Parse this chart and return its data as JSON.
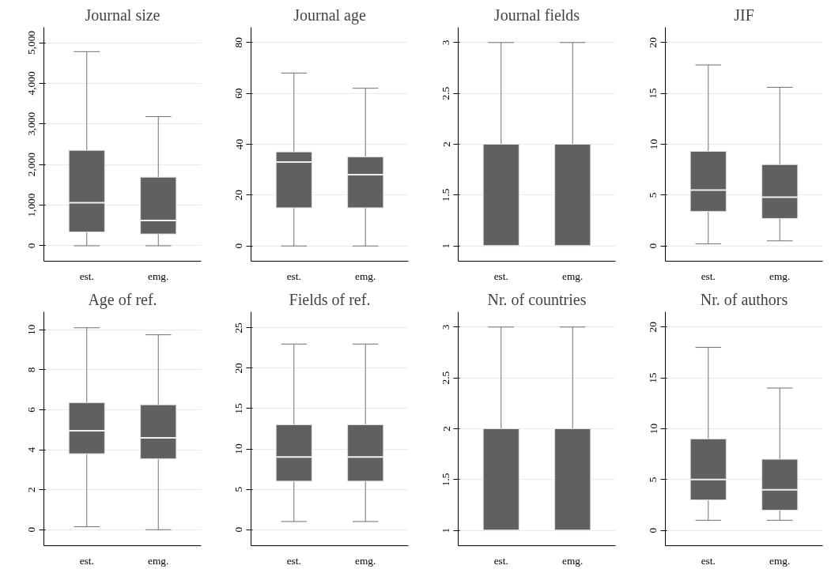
{
  "chart_data": [
    {
      "type": "box",
      "title": "Journal size",
      "categories": [
        "est.",
        "emg."
      ],
      "ylim": [
        -380,
        5380
      ],
      "yticks": [
        0,
        {
          "value": 1000,
          "label": "1,000"
        },
        {
          "value": 2000,
          "label": "2,000"
        },
        {
          "value": 3000,
          "label": "3,000"
        },
        {
          "value": 4000,
          "label": "4,000"
        },
        {
          "value": 5000,
          "label": "5,000"
        }
      ],
      "grid": "y",
      "series": [
        {
          "color": "#606060",
          "boxes": [
            {
              "low": 0,
              "q1": 340,
              "median": 1060,
              "q3": 2350,
              "high": 4780
            },
            {
              "low": 0,
              "q1": 290,
              "median": 620,
              "q3": 1690,
              "high": 3180
            }
          ]
        }
      ]
    },
    {
      "type": "box",
      "title": "Journal age",
      "categories": [
        "est.",
        "emg."
      ],
      "ylim": [
        -6,
        86
      ],
      "yticks": [
        0,
        20,
        40,
        60,
        80
      ],
      "grid": "y",
      "series": [
        {
          "color": "#606060",
          "boxes": [
            {
              "low": 0,
              "q1": 15,
              "median": 33,
              "q3": 37,
              "high": 68
            },
            {
              "low": 0,
              "q1": 15,
              "median": 28,
              "q3": 35,
              "high": 62
            }
          ]
        }
      ]
    },
    {
      "type": "box",
      "title": "Journal fields",
      "categories": [
        "est.",
        "emg."
      ],
      "ylim": [
        0.85,
        3.15
      ],
      "yticks": [
        1,
        1.5,
        2,
        2.5,
        3
      ],
      "grid": "y",
      "series": [
        {
          "color": "#606060",
          "boxes": [
            {
              "low": 1,
              "q1": 1,
              "median": 1,
              "q3": 2,
              "high": 3
            },
            {
              "low": 1,
              "q1": 1,
              "median": 1,
              "q3": 2,
              "high": 3
            }
          ]
        }
      ]
    },
    {
      "type": "box",
      "title": "JIF",
      "categories": [
        "est.",
        "emg."
      ],
      "ylim": [
        -1.5,
        21.5
      ],
      "yticks": [
        0,
        5,
        10,
        15,
        20
      ],
      "grid": "y",
      "series": [
        {
          "color": "#606060",
          "boxes": [
            {
              "low": 0.2,
              "q1": 3.4,
              "median": 5.5,
              "q3": 9.3,
              "high": 17.8
            },
            {
              "low": 0.5,
              "q1": 2.7,
              "median": 4.8,
              "q3": 8.0,
              "high": 15.6
            }
          ]
        }
      ]
    },
    {
      "type": "box",
      "title": "Age of ref.",
      "categories": [
        "est.",
        "emg."
      ],
      "ylim": [
        -0.8,
        10.9
      ],
      "yticks": [
        0,
        2,
        4,
        6,
        8,
        10
      ],
      "grid": "y",
      "series": [
        {
          "color": "#606060",
          "boxes": [
            {
              "low": 0.15,
              "q1": 3.8,
              "median": 4.95,
              "q3": 6.35,
              "high": 10.1
            },
            {
              "low": 0,
              "q1": 3.55,
              "median": 4.6,
              "q3": 6.25,
              "high": 9.75
            }
          ]
        }
      ]
    },
    {
      "type": "box",
      "title": "Fields of ref.",
      "categories": [
        "est.",
        "emg."
      ],
      "ylim": [
        -2,
        27
      ],
      "yticks": [
        0,
        5,
        10,
        15,
        20,
        25
      ],
      "grid": "y",
      "series": [
        {
          "color": "#606060",
          "boxes": [
            {
              "low": 1,
              "q1": 6,
              "median": 9,
              "q3": 13,
              "high": 23
            },
            {
              "low": 1,
              "q1": 6,
              "median": 9,
              "q3": 13,
              "high": 23
            }
          ]
        }
      ]
    },
    {
      "type": "box",
      "title": "Nr. of countries",
      "categories": [
        "est.",
        "emg."
      ],
      "ylim": [
        0.85,
        3.15
      ],
      "yticks": [
        1,
        1.5,
        2,
        2.5,
        3
      ],
      "grid": "y",
      "series": [
        {
          "color": "#606060",
          "boxes": [
            {
              "low": 1,
              "q1": 1,
              "median": 1,
              "q3": 2,
              "high": 3
            },
            {
              "low": 1,
              "q1": 1,
              "median": 1,
              "q3": 2,
              "high": 3
            }
          ]
        }
      ]
    },
    {
      "type": "box",
      "title": "Nr. of authors",
      "categories": [
        "est.",
        "emg."
      ],
      "ylim": [
        -1.5,
        21.5
      ],
      "yticks": [
        0,
        5,
        10,
        15,
        20
      ],
      "grid": "y",
      "series": [
        {
          "color": "#606060",
          "boxes": [
            {
              "low": 1,
              "q1": 3,
              "median": 5,
              "q3": 9,
              "high": 18
            },
            {
              "low": 1,
              "q1": 2,
              "median": 4,
              "q3": 7,
              "high": 14
            }
          ]
        }
      ]
    }
  ]
}
